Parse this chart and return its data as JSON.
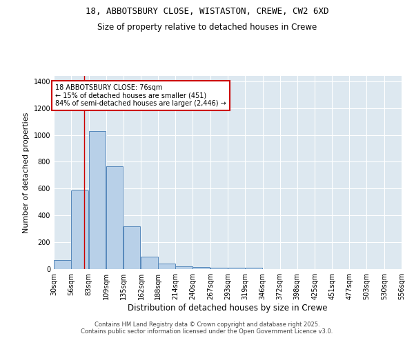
{
  "title_line1": "18, ABBOTSBURY CLOSE, WISTASTON, CREWE, CW2 6XD",
  "title_line2": "Size of property relative to detached houses in Crewe",
  "xlabel": "Distribution of detached houses by size in Crewe",
  "ylabel": "Number of detached properties",
  "bins": [
    30,
    56,
    83,
    109,
    135,
    162,
    188,
    214,
    240,
    267,
    293,
    319,
    346,
    372,
    398,
    425,
    451,
    477,
    503,
    530,
    556
  ],
  "values": [
    65,
    585,
    1030,
    765,
    320,
    95,
    42,
    22,
    15,
    10,
    12,
    8,
    0,
    0,
    0,
    0,
    0,
    0,
    0,
    0
  ],
  "bar_color": "#b8d0e8",
  "bar_edge_color": "#5588bb",
  "bg_color": "#dde8f0",
  "grid_color": "#ffffff",
  "red_line_x": 76,
  "ylim": [
    0,
    1440
  ],
  "yticks": [
    0,
    200,
    400,
    600,
    800,
    1000,
    1200,
    1400
  ],
  "annotation_title": "18 ABBOTSBURY CLOSE: 76sqm",
  "annotation_line1": "← 15% of detached houses are smaller (451)",
  "annotation_line2": "84% of semi-detached houses are larger (2,446) →",
  "annotation_box_color": "#ffffff",
  "annotation_box_edge": "#cc0000",
  "footer_line1": "Contains HM Land Registry data © Crown copyright and database right 2025.",
  "footer_line2": "Contains public sector information licensed under the Open Government Licence v3.0."
}
